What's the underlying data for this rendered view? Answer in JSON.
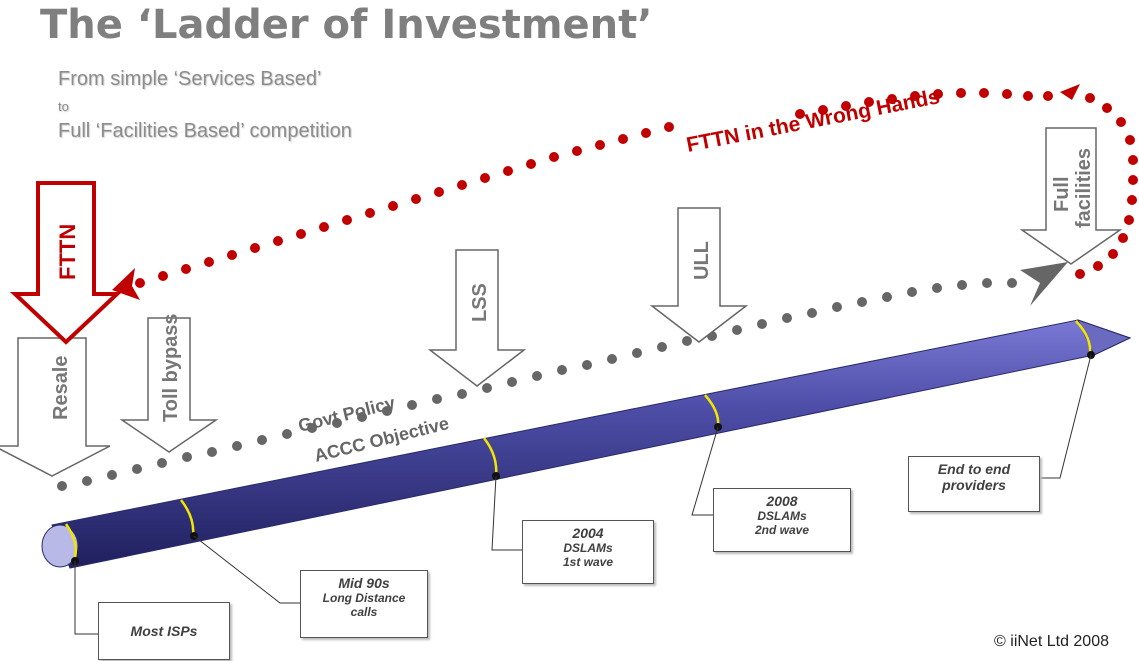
{
  "title": "The ‘Ladder of Investment’",
  "subtitle": {
    "line1": "From simple ‘Services Based’",
    "line2": "to",
    "line3": "Full ‘Facilities Based’ competition"
  },
  "arrows": {
    "fttn": "FTTN",
    "resale": "Resale",
    "toll_bypass": "Toll bypass",
    "lss": "LSS",
    "ull": "ULL",
    "full_facilities_1": "Full",
    "full_facilities_2": "facilities"
  },
  "curve_label": "FTTN in the Wrong Hands",
  "govt_policy": "Govt Policy",
  "accc_objective": "ACCC Objective",
  "milestones": {
    "most_isps": "Most ISPs",
    "mid90s_year": "Mid 90s",
    "mid90s_l1": "Long Distance",
    "mid90s_l2": "calls",
    "y2004_year": "2004",
    "y2004_l1": "DSLAMs",
    "y2004_l2": "1st wave",
    "y2008_year": "2008",
    "y2008_l1": "DSLAMs",
    "y2008_l2": "2nd wave",
    "end_l1": "End to end",
    "end_l2": "providers"
  },
  "copyright": "© iiNet Ltd 2008",
  "colors": {
    "red": "#c00000",
    "grey_dots": "#555555",
    "pipe": "#3a3a8c",
    "ring": "#f0e000"
  }
}
